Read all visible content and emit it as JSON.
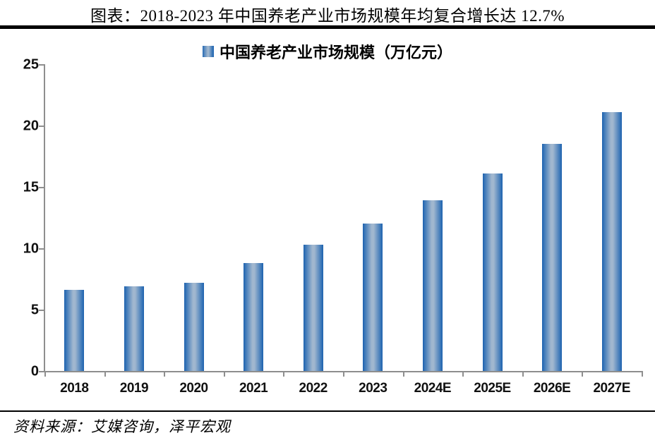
{
  "header": {
    "title": "图表：2018-2023 年中国养老产业市场规模年均复合增长达 12.7%"
  },
  "legend": {
    "label": "中国养老产业市场规模（万亿元）",
    "marker_color_edge": "#1E64B2",
    "marker_color_center": "#9FB6CE"
  },
  "chart_data": {
    "type": "bar",
    "title": "图表：2018-2023 年中国养老产业市场规模年均复合增长达 12.7%",
    "legend_entry": "中国养老产业市场规模（万亿元）",
    "legend_position": "top-center",
    "categories": [
      "2018",
      "2019",
      "2020",
      "2021",
      "2022",
      "2023",
      "2024E",
      "2025E",
      "2026E",
      "2027E"
    ],
    "values": [
      6.6,
      6.9,
      7.2,
      8.8,
      10.3,
      12.0,
      13.9,
      16.1,
      18.5,
      21.1
    ],
    "xlabel": "",
    "ylabel": "",
    "ylim": [
      0,
      25
    ],
    "yticks": [
      0,
      5,
      10,
      15,
      20,
      25
    ],
    "grid": false,
    "bar_color_edge": "#1E64B2",
    "bar_color_center": "#A1B7CF",
    "axis_color": "#8E8E8E"
  },
  "footer": {
    "source": "资料来源：艾媒咨询，泽平宏观"
  }
}
